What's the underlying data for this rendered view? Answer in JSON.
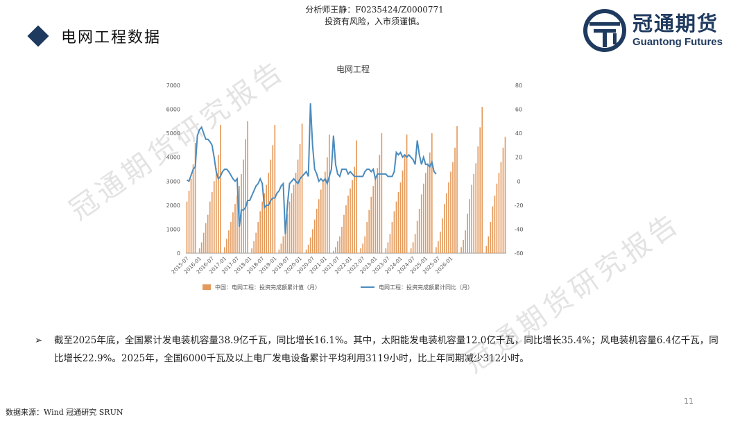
{
  "header": {
    "analyst_line1": "分析师王静：F0235424/Z0000771",
    "analyst_line2": "投资有风险，入市须谨慎。",
    "slide_title": "电网工程数据",
    "logo_cn": "冠通期货",
    "logo_en": "Guantong Futures"
  },
  "watermark": [
    "冠通期货研究报告",
    "冠通期货研究报告"
  ],
  "colors": {
    "bar": "#e49a5c",
    "line": "#4a8bbd",
    "brand": "#1f3a5f"
  },
  "chart_data": {
    "type": "bar+line",
    "title": "电网工程",
    "y_left": {
      "min": 0,
      "max": 7000,
      "ticks": [
        "0",
        "1000",
        "2000",
        "3000",
        "4000",
        "5000",
        "6000",
        "7000"
      ]
    },
    "y_right": {
      "min": -60,
      "max": 80,
      "ticks": [
        "-60",
        "-40",
        "-20",
        "0",
        "20",
        "40",
        "60",
        "80"
      ]
    },
    "x_tick_labels": [
      "2015-07",
      "2016-01",
      "2016-07",
      "2017-01",
      "2017-07",
      "2018-01",
      "2018-07",
      "2019-01",
      "2019-07",
      "2020-01",
      "2020-07",
      "2021-01",
      "2021-07",
      "2022-01",
      "2022-07",
      "2023-01",
      "2023-07",
      "2024-01",
      "2024-07",
      "2025-01",
      "2025-07",
      "2026-01"
    ],
    "x_start": "2015-07",
    "series": [
      {
        "name": "中国：电网工程：投资完成额累计值（月）",
        "type": "bar",
        "axis": "left",
        "values": [
          2150,
          2600,
          3100,
          3700,
          4600,
          0,
          200,
          450,
          850,
          1250,
          1600,
          2150,
          2550,
          3000,
          3550,
          4100,
          5350,
          0,
          250,
          600,
          950,
          1300,
          1700,
          2050,
          2400,
          2800,
          3300,
          3900,
          4750,
          5500,
          0,
          200,
          500,
          850,
          1300,
          1750,
          2150,
          2500,
          2850,
          3350,
          3900,
          4500,
          5350,
          0,
          150,
          400,
          700,
          1150,
          1650,
          2150,
          2500,
          2850,
          3350,
          3900,
          4550,
          5400,
          0,
          150,
          350,
          650,
          1000,
          1400,
          1850,
          2250,
          2650,
          3050,
          3400,
          4000,
          4950,
          0,
          100,
          250,
          500,
          700,
          1100,
          1600,
          2000,
          2400,
          2700,
          3050,
          3600,
          4700,
          0,
          200,
          400,
          700,
          1300,
          1800,
          2350,
          2800,
          3200,
          3550,
          4100,
          5000,
          0,
          200,
          450,
          800,
          1300,
          1750,
          2150,
          2550,
          2950,
          3450,
          4050,
          4950,
          0,
          200,
          450,
          800,
          1350,
          1850,
          2450,
          2900,
          3350,
          3750,
          4200,
          5000,
          0,
          250,
          500,
          900,
          1450,
          2050,
          2500,
          2950,
          3400,
          3800,
          4400,
          5300,
          0,
          250,
          550,
          950,
          1650,
          2250,
          2850,
          3300,
          3750,
          4450,
          5250,
          6100,
          0,
          300,
          700,
          1300,
          1950,
          2400,
          2900,
          3350,
          3800,
          4400,
          4850
        ]
      },
      {
        "name": "电网工程：投资完成额累计同比（月）",
        "type": "line",
        "axis": "right",
        "values": [
          1,
          0,
          5,
          10,
          12,
          38,
          43,
          45,
          40,
          35,
          35,
          33,
          30,
          20,
          8,
          2,
          4,
          8,
          10,
          10,
          8,
          5,
          2,
          0,
          2,
          -38,
          -24,
          -24,
          -22,
          -16,
          -16,
          -12,
          -8,
          -4,
          -2,
          2,
          -2,
          -22,
          -20,
          -20,
          -16,
          -14,
          -14,
          -10,
          -8,
          -4,
          -2,
          -44,
          -20,
          -2,
          0,
          2,
          0,
          -2,
          2,
          4,
          6,
          8,
          4,
          65,
          30,
          10,
          6,
          0,
          2,
          0,
          2,
          -2,
          4,
          10,
          38,
          14,
          6,
          4,
          10,
          10,
          10,
          6,
          8,
          6,
          4,
          4,
          4,
          4,
          4,
          8,
          10,
          10,
          8,
          10,
          2,
          6,
          6,
          6,
          6,
          6,
          4,
          4,
          4,
          8,
          24,
          22,
          24,
          20,
          22,
          20,
          22,
          20,
          18,
          14,
          34,
          22,
          14,
          20,
          14,
          14,
          12,
          16,
          8,
          6
        ]
      }
    ],
    "legend": "bottom"
  },
  "bullet": {
    "symbol": "➢",
    "text": "截至2025年底，全国累计发电装机容量38.9亿千瓦，同比增长16.1%。其中，太阳能发电装机容量12.0亿千瓦，同比增长35.4%；风电装机容量6.4亿千瓦，同比增长22.9%。2025年，全国6000千瓦及以上电厂发电设备累计平均利用3119小时，比上年同期减少312小时。"
  },
  "footer": {
    "source": "数据来源：Wind 冠通研究 SRUN",
    "page": "11"
  }
}
